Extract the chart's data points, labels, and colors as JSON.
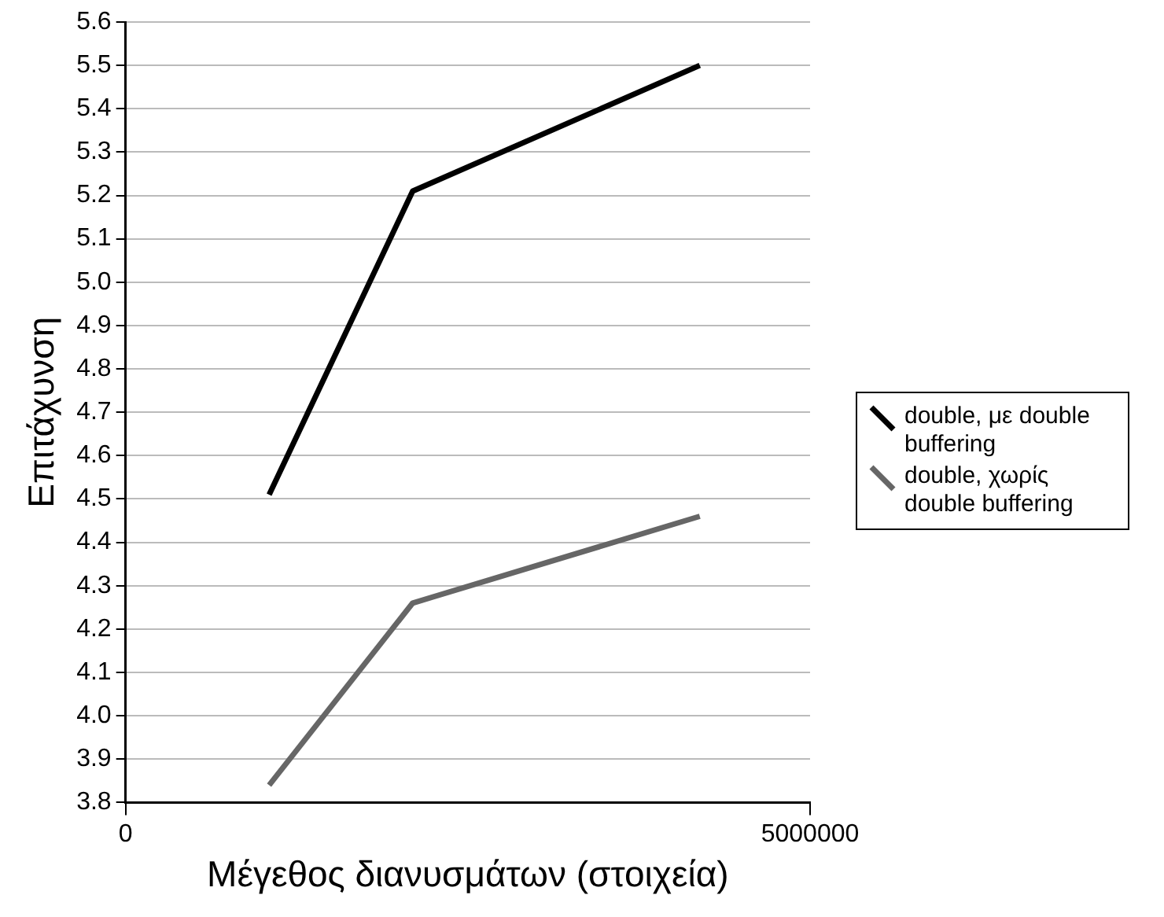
{
  "chart_data": {
    "type": "line",
    "xlabel": "Μέγεθος διανυσμάτων (στοιχεία)",
    "ylabel": "Επιτάχυνση",
    "x": [
      1048576,
      2097152,
      4194304
    ],
    "series": [
      {
        "name": "double, με double buffering",
        "color": "#000000",
        "values": [
          4.51,
          5.21,
          5.5
        ]
      },
      {
        "name": "double, χωρίς double buffering",
        "color": "#666666",
        "values": [
          3.84,
          4.26,
          4.46
        ]
      }
    ],
    "xlim": [
      0,
      5000000
    ],
    "xticks": [
      0,
      5000000
    ],
    "ylim": [
      3.8,
      5.6
    ],
    "yticks": [
      3.8,
      3.9,
      {
        "value": 4,
        "label": "4.0"
      },
      4.1,
      4.2,
      4.3,
      4.4,
      4.5,
      4.6,
      4.7,
      4.8,
      4.9,
      {
        "value": 5,
        "label": "5.0"
      },
      5.1,
      5.2,
      5.3,
      5.4,
      5.5,
      5.6
    ],
    "grid": "y",
    "legend": "right",
    "marker": "none",
    "line_style": "solid"
  }
}
